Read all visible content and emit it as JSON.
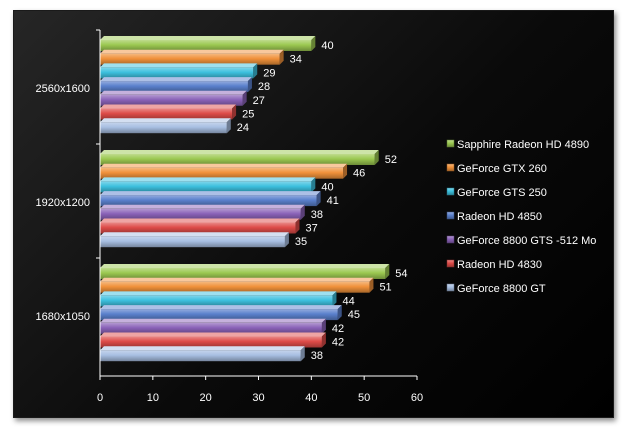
{
  "chart_data": {
    "type": "bar",
    "orientation": "horizontal",
    "categories": [
      "2560x1600",
      "1920x1200",
      "1680x1050"
    ],
    "series": [
      {
        "name": "Sapphire Radeon HD 4890",
        "color": "#9bc850",
        "values": [
          40,
          52,
          54
        ]
      },
      {
        "name": "GeForce GTX 260",
        "color": "#f0913a",
        "values": [
          34,
          46,
          51
        ]
      },
      {
        "name": "GeForce GTS 250",
        "color": "#3cc0de",
        "values": [
          29,
          40,
          44
        ]
      },
      {
        "name": "Radeon HD 4850",
        "color": "#5a80cc",
        "values": [
          28,
          41,
          45
        ]
      },
      {
        "name": "GeForce 8800 GTS -512 Mo",
        "color": "#8a62b8",
        "values": [
          27,
          38,
          42
        ]
      },
      {
        "name": "Radeon HD 4830",
        "color": "#dd4b48",
        "values": [
          25,
          37,
          42
        ]
      },
      {
        "name": "GeForce 8800 GT",
        "color": "#a8bfe2",
        "values": [
          24,
          35,
          38
        ]
      }
    ],
    "xlim": [
      0,
      60
    ],
    "xticks": [
      0,
      10,
      20,
      30,
      40,
      50,
      60
    ],
    "legend": "right",
    "background": "#000000",
    "grid": false
  }
}
